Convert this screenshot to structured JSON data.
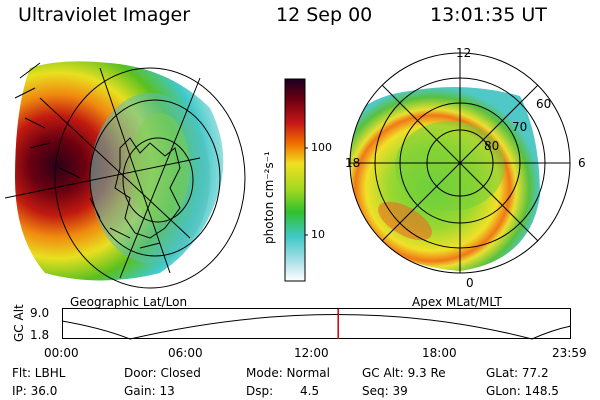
{
  "header": {
    "instrument": "Ultraviolet Imager",
    "date": "12 Sep 00",
    "time": "13:01:35 UT"
  },
  "left_panel": {
    "caption": "Geographic Lat/Lon"
  },
  "right_panel": {
    "caption": "Apex MLat/MLT",
    "mlt_labels": [
      "12",
      "18",
      "6",
      "0"
    ],
    "lat_labels": [
      "80",
      "70",
      "60"
    ]
  },
  "colorbar": {
    "unit_label": "photon cm⁻²s⁻¹",
    "ticks": [
      "100",
      "10"
    ]
  },
  "timeline": {
    "axis_label": "GC Alt",
    "y_ticks": [
      "9.0",
      "1.8"
    ],
    "x_ticks": [
      "00:00",
      "06:00",
      "12:00",
      "18:00",
      "23:59"
    ],
    "cursor_fraction": 0.5428
  },
  "info": {
    "flt": "Flt: LBHL",
    "ip": "IP: 36.0",
    "door": "Door: Closed",
    "gain": "Gain: 13",
    "mode": "Mode: Normal",
    "dsp_label": "Dsp:",
    "dsp_value": "4.5",
    "gc_alt": "GC Alt: 9.3 Re",
    "seq": "Seq: 39",
    "glat": "GLat: 77.2",
    "glon": "GLon: 148.5"
  },
  "colors": {
    "cursor": "#d00000",
    "auroral_peak": "#6b0010"
  }
}
